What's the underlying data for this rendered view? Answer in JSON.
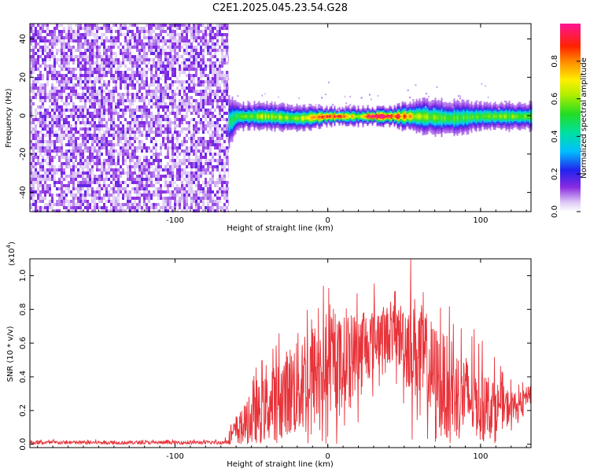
{
  "title": "C2E1.2025.045.23.54.G28",
  "chart_data": [
    {
      "type": "heatmap",
      "xlabel": "Height of straight line (km)",
      "ylabel": "Frequency (Hz)",
      "xlim": [
        -195,
        133
      ],
      "ylim": [
        -50,
        48
      ],
      "x_ticks": [
        -100,
        0,
        100
      ],
      "x_tick_labels": [
        "-100",
        "0",
        "100"
      ],
      "y_ticks": [
        -40,
        -20,
        0,
        20,
        40
      ],
      "y_tick_labels": [
        "-40",
        "-20",
        "0",
        "20",
        "40"
      ],
      "colorbar": {
        "label": "Normalized spectral amplitude",
        "range": [
          0,
          1
        ],
        "ticks": [
          0.0,
          0.2,
          0.4,
          0.6,
          0.8
        ],
        "tick_labels": [
          "0.0",
          "0.2",
          "0.4",
          "0.6",
          "0.8"
        ],
        "colormap": "rainbow (white-violet-blue-cyan-green-yellow-red-magenta)"
      },
      "noise_region_x": [
        -195,
        -65
      ],
      "signal_band": [
        {
          "x": -65,
          "center": -3,
          "halfwidth": 6,
          "peak": 0.35
        },
        {
          "x": -60,
          "center": 0,
          "halfwidth": 3,
          "peak": 0.45
        },
        {
          "x": -40,
          "center": 0,
          "halfwidth": 3,
          "peak": 0.55
        },
        {
          "x": -20,
          "center": -1,
          "halfwidth": 3,
          "peak": 0.5
        },
        {
          "x": 0,
          "center": 0,
          "halfwidth": 2,
          "peak": 0.85
        },
        {
          "x": 20,
          "center": 0,
          "halfwidth": 2,
          "peak": 0.6
        },
        {
          "x": 30,
          "center": 0,
          "halfwidth": 2,
          "peak": 1.0
        },
        {
          "x": 40,
          "center": 0,
          "halfwidth": 2,
          "peak": 0.9
        },
        {
          "x": 60,
          "center": 0,
          "halfwidth": 4,
          "peak": 0.55
        },
        {
          "x": 80,
          "center": -1,
          "halfwidth": 4,
          "peak": 0.45
        },
        {
          "x": 100,
          "center": 0,
          "halfwidth": 3,
          "peak": 0.45
        },
        {
          "x": 120,
          "center": 0,
          "halfwidth": 3,
          "peak": 0.5
        },
        {
          "x": 133,
          "center": 0,
          "halfwidth": 3,
          "peak": 0.45
        }
      ]
    },
    {
      "type": "line",
      "xlabel": "Height of straight line (km)",
      "ylabel": "SNR (10 * v/v)",
      "y_multiplier": "(x10",
      "y_multiplier_exp": "4",
      "y_multiplier_close": ")",
      "xlim": [
        -195,
        133
      ],
      "ylim": [
        -0.02,
        1.1
      ],
      "x_ticks": [
        -100,
        0,
        100
      ],
      "x_tick_labels": [
        "-100",
        "0",
        "100"
      ],
      "y_ticks": [
        0.0,
        0.2,
        0.4,
        0.6,
        0.8,
        1.0
      ],
      "y_tick_labels": [
        "0.0",
        "0.2",
        "0.4",
        "0.6",
        "0.8",
        "1.0"
      ],
      "series": [
        {
          "color": "#e8333a",
          "envelope": [
            {
              "x": -195,
              "base": 0.01,
              "amp": 0.015
            },
            {
              "x": -68,
              "base": 0.01,
              "amp": 0.015
            },
            {
              "x": -60,
              "base": 0.08,
              "amp": 0.12
            },
            {
              "x": -45,
              "base": 0.18,
              "amp": 0.25
            },
            {
              "x": -30,
              "base": 0.28,
              "amp": 0.35
            },
            {
              "x": -15,
              "base": 0.38,
              "amp": 0.5
            },
            {
              "x": 0,
              "base": 0.45,
              "amp": 0.4
            },
            {
              "x": 20,
              "base": 0.55,
              "amp": 0.35
            },
            {
              "x": 35,
              "base": 0.65,
              "amp": 0.25
            },
            {
              "x": 45,
              "base": 0.65,
              "amp": 0.25
            },
            {
              "x": 55,
              "base": 0.6,
              "amp": 0.45
            },
            {
              "x": 70,
              "base": 0.4,
              "amp": 0.45
            },
            {
              "x": 85,
              "base": 0.3,
              "amp": 0.4
            },
            {
              "x": 100,
              "base": 0.25,
              "amp": 0.3
            },
            {
              "x": 115,
              "base": 0.22,
              "amp": 0.18
            },
            {
              "x": 125,
              "base": 0.23,
              "amp": 0.1
            },
            {
              "x": 133,
              "base": 0.32,
              "amp": 0.06
            }
          ]
        }
      ]
    }
  ]
}
